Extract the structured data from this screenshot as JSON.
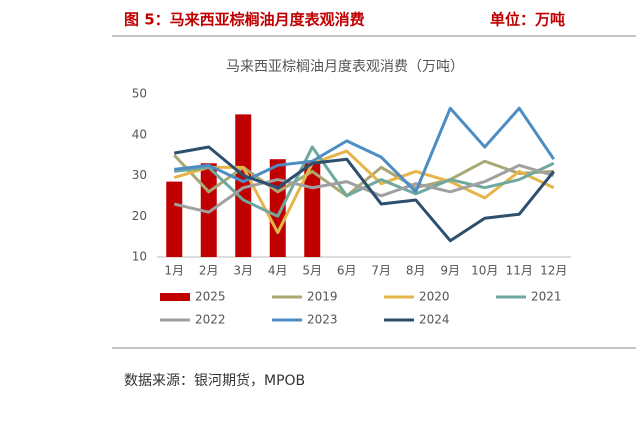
{
  "header": {
    "title": "图 5：马来西亚棕榈油月度表观消费",
    "unit": "单位：万吨"
  },
  "chart_data": {
    "type": "combo",
    "title": "马来西亚棕榈油月度表观消费（万吨）",
    "categories": [
      "1月",
      "2月",
      "3月",
      "4月",
      "5月",
      "6月",
      "7月",
      "8月",
      "9月",
      "10月",
      "11月",
      "12月"
    ],
    "ylim": [
      10,
      50
    ],
    "yticks": [
      10,
      20,
      30,
      40,
      50
    ],
    "grid": false,
    "series": [
      {
        "name": "2025",
        "type": "bar",
        "color": "#c00000",
        "values": [
          28.5,
          33,
          45,
          34,
          33,
          null,
          null,
          null,
          null,
          null,
          null,
          null
        ]
      },
      {
        "name": "2019",
        "type": "line",
        "color": "#a9a874",
        "values": [
          35,
          26,
          32,
          26,
          31,
          25,
          32,
          27,
          29,
          33.5,
          30.5,
          31
        ]
      },
      {
        "name": "2020",
        "type": "line",
        "color": "#e6b54a",
        "values": [
          29.5,
          32,
          32,
          16,
          33,
          36,
          28,
          31,
          28.5,
          24.5,
          31,
          27
        ]
      },
      {
        "name": "2021",
        "type": "line",
        "color": "#6fa8a0",
        "values": [
          31,
          32,
          24,
          20,
          37,
          25,
          29,
          25.5,
          29,
          27,
          29,
          33
        ]
      },
      {
        "name": "2022",
        "type": "line",
        "color": "#a0a0a0",
        "values": [
          23,
          21,
          27,
          29,
          27,
          28.5,
          25,
          28,
          26,
          28.5,
          32.5,
          30
        ]
      },
      {
        "name": "2023",
        "type": "line",
        "color": "#4e8cc4",
        "values": [
          31.5,
          32.5,
          28.5,
          32.5,
          33.5,
          38.5,
          34.5,
          26,
          46.5,
          37,
          46.5,
          34
        ]
      },
      {
        "name": "2024",
        "type": "line",
        "color": "#2d4f6e",
        "values": [
          35.5,
          37,
          30,
          27,
          33,
          34,
          23,
          24,
          14,
          19.5,
          20.5,
          31
        ]
      }
    ]
  },
  "footer": {
    "source": "数据来源：银河期货，MPOB"
  }
}
